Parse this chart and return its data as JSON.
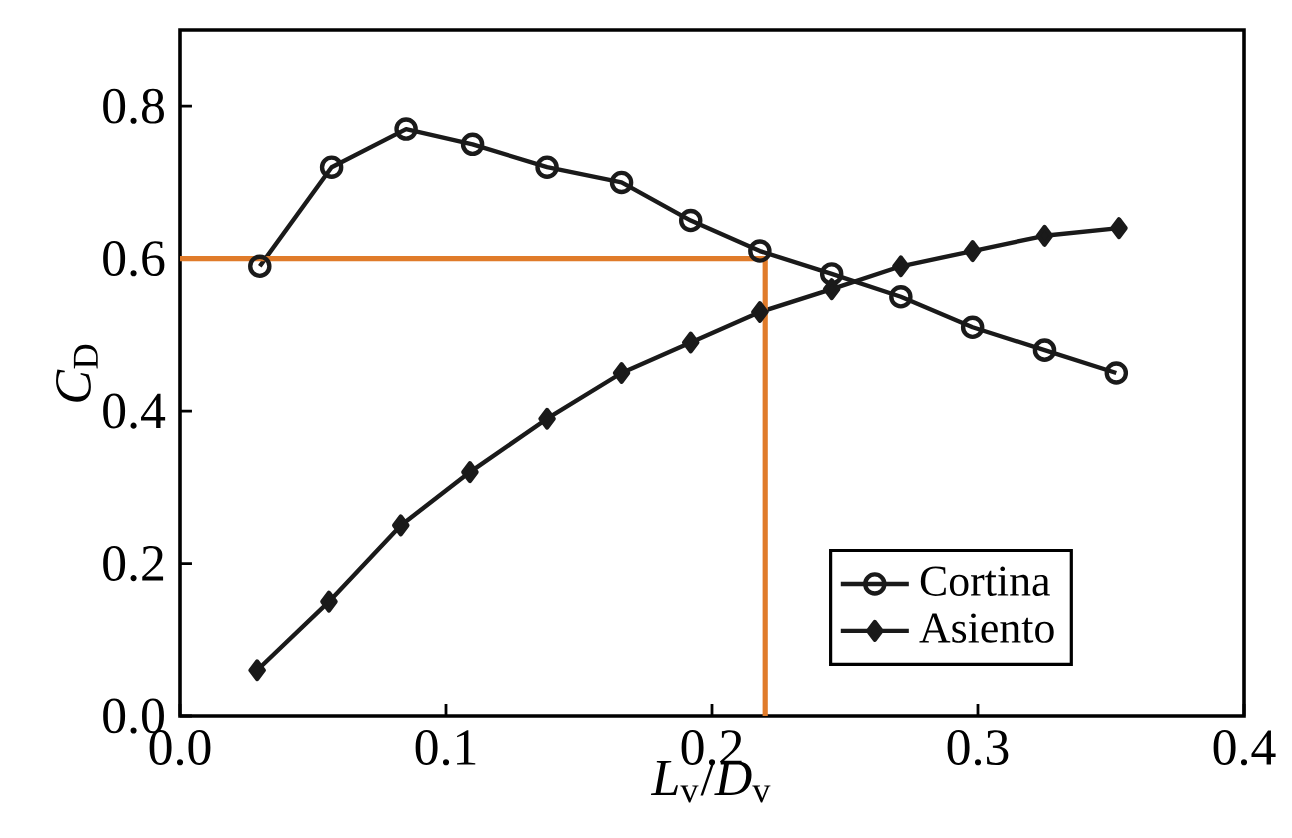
{
  "chart_data": {
    "type": "line",
    "xlabel": "*L*$_{v}$/*D*$_{v}$",
    "ylabel": "*C*$_{D}$",
    "xlim": [
      0,
      0.4
    ],
    "ylim": [
      0,
      0.9
    ],
    "xticks": [
      {
        "value": 0,
        "label": "0.0"
      },
      0.1,
      0.2,
      0.3,
      0.4
    ],
    "yticks": [
      {
        "value": 0,
        "label": "0.0"
      },
      0.2,
      0.4,
      0.6,
      0.8
    ],
    "grid": false,
    "legend": "bottom right",
    "line_style": "solid",
    "series": [
      {
        "name": "Cortina",
        "color": "#1a1a1a",
        "marker": "circle",
        "x": [
          0.03,
          0.057,
          0.085,
          0.11,
          0.138,
          0.166,
          0.192,
          0.218,
          0.245,
          0.271,
          0.298,
          0.325,
          0.352
        ],
        "values": [
          0.59,
          0.72,
          0.77,
          0.75,
          0.72,
          0.7,
          0.65,
          0.61,
          0.58,
          0.55,
          0.51,
          0.48,
          0.45
        ]
      },
      {
        "name": "Asiento",
        "color": "#1a1a1a",
        "marker": "diamond",
        "x": [
          0.029,
          0.056,
          0.083,
          0.109,
          0.138,
          0.166,
          0.192,
          0.218,
          0.245,
          0.271,
          0.298,
          0.325,
          0.353
        ],
        "values": [
          0.06,
          0.15,
          0.25,
          0.32,
          0.39,
          0.45,
          0.49,
          0.53,
          0.56,
          0.59,
          0.61,
          0.63,
          0.64
        ]
      }
    ],
    "ref_lines": [
      {
        "axis": "y",
        "value": 0.6,
        "color": "#e07b2a"
      },
      {
        "axis": "x",
        "value": 0.22,
        "color": "#e07b2a"
      }
    ]
  }
}
